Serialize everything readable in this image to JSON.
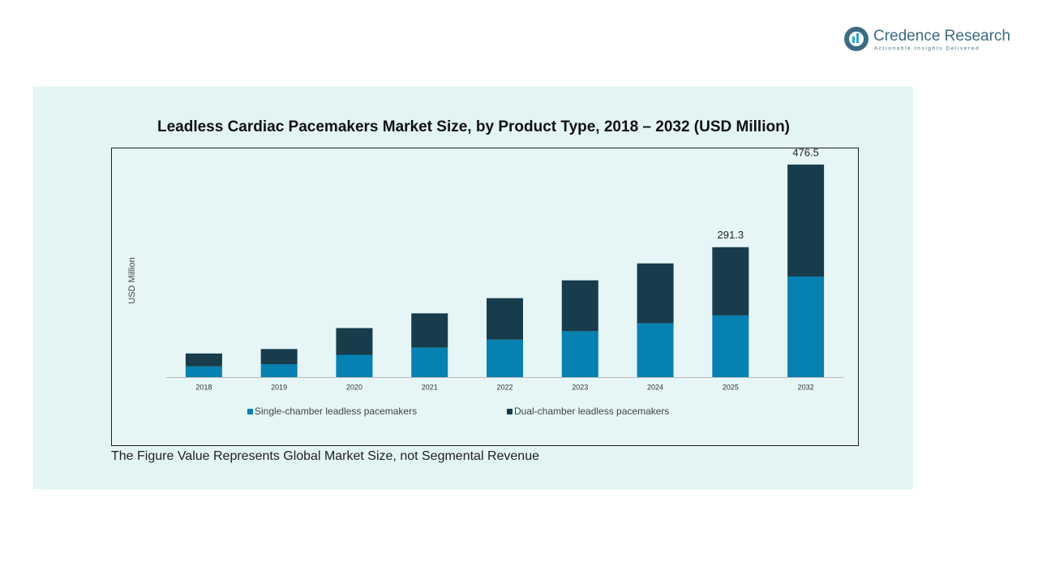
{
  "brand": {
    "name": "Credence Research",
    "tagline": "Actionable Insights Delivered"
  },
  "chart_data": {
    "type": "bar",
    "stacked": true,
    "title": "Leadless Cardiac Pacemakers Market Size, by Product Type, 2018 – 2032 (USD Million)",
    "y_label": "USD Million",
    "categories": [
      "2018",
      "2019",
      "2020",
      "2021",
      "2022",
      "2023",
      "2024",
      "2025",
      "2032"
    ],
    "series": [
      {
        "name": "Single-chamber leadless pacemakers",
        "color": "#0681b1",
        "values": [
          24,
          29,
          50,
          66,
          84,
          103,
          121,
          138.4,
          225.5
        ]
      },
      {
        "name": "Dual-chamber leadless pacemakers",
        "color": "#173c4c",
        "values": [
          29,
          34,
          60,
          77,
          93,
          114,
          134,
          152.9,
          251.0
        ]
      }
    ],
    "totals": [
      null,
      null,
      null,
      null,
      null,
      null,
      null,
      291.3,
      476.5
    ],
    "ylim": [
      0,
      500
    ],
    "legend": "bottom"
  },
  "footnote": "The Figure Value Represents Global Market Size, not Segmental Revenue"
}
